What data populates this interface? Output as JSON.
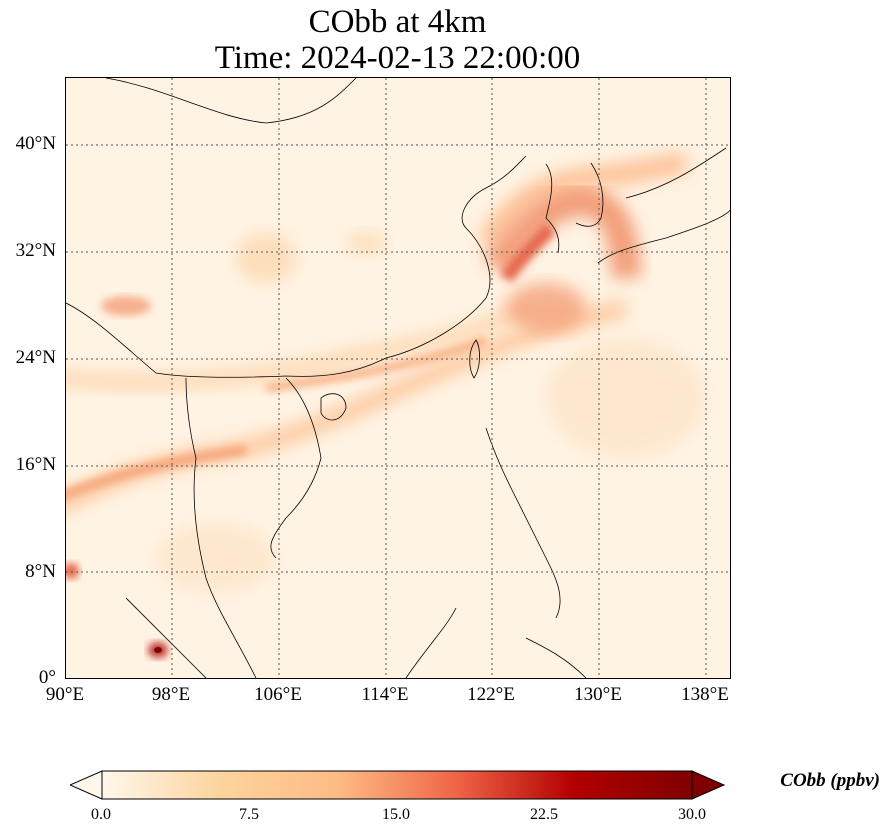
{
  "title": {
    "line1": "CObb at 4km",
    "line2": "Time: 2024-02-13 22:00:00"
  },
  "map": {
    "projection": "PlateCarree",
    "lon_range": [
      90,
      140
    ],
    "lat_range": [
      0,
      45
    ],
    "gridlines": "dotted",
    "lat_ticks": [
      "40°N",
      "32°N",
      "24°N",
      "16°N",
      "8°N",
      "0°"
    ],
    "lon_ticks": [
      "90°E",
      "98°E",
      "106°E",
      "114°E",
      "122°E",
      "130°E",
      "138°E"
    ],
    "field": "CObb",
    "colormap": "OrRd",
    "colors": {
      "low": "#fff7ec",
      "mid": "#fc8d59",
      "high": "#7f0000",
      "coastline": "#000000"
    }
  },
  "colorbar": {
    "label": "CObb (ppbv)",
    "ticks": [
      "0.0",
      "7.5",
      "15.0",
      "22.5",
      "30.0"
    ],
    "range": [
      0,
      30
    ],
    "extend": "both"
  }
}
